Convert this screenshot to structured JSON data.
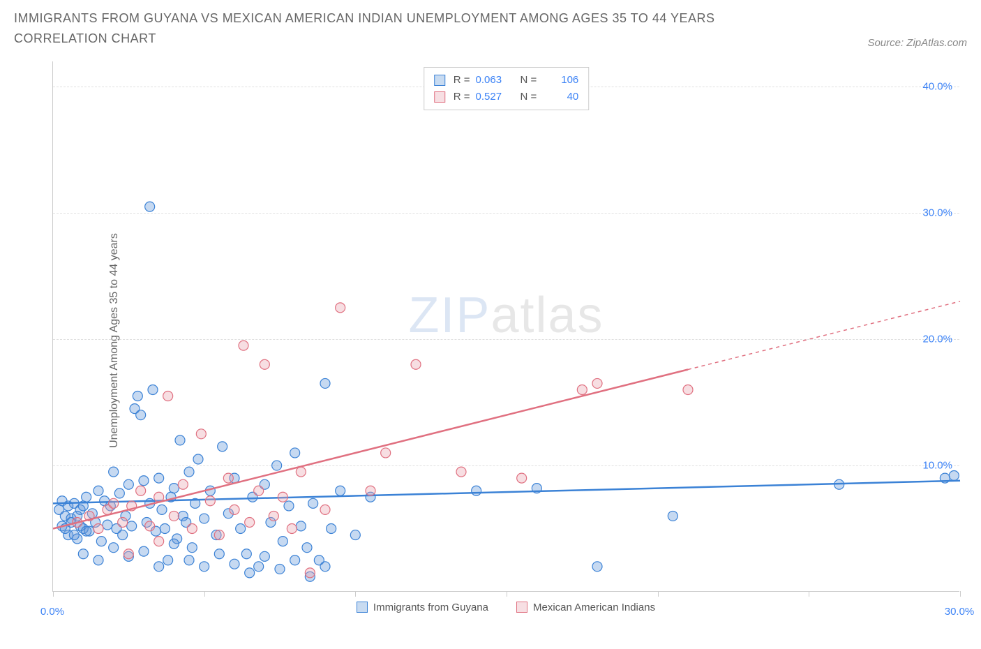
{
  "title": "IMMIGRANTS FROM GUYANA VS MEXICAN AMERICAN INDIAN UNEMPLOYMENT AMONG AGES 35 TO 44 YEARS CORRELATION CHART",
  "source": "Source: ZipAtlas.com",
  "y_axis_label": "Unemployment Among Ages 35 to 44 years",
  "watermark": {
    "part1": "ZIP",
    "part2": "atlas"
  },
  "chart": {
    "type": "scatter",
    "xlim": [
      0,
      30
    ],
    "ylim": [
      0,
      42
    ],
    "x_ticks": [
      0,
      5,
      10,
      15,
      20,
      25,
      30
    ],
    "x_tick_labels": [
      "0.0%",
      "",
      "",
      "",
      "",
      "",
      "30.0%"
    ],
    "y_ticks": [
      10,
      20,
      30,
      40
    ],
    "y_tick_labels": [
      "10.0%",
      "20.0%",
      "30.0%",
      "40.0%"
    ],
    "x_label_color": "#3b82f6",
    "y_label_color": "#3b82f6",
    "grid_color": "#e0e0e0",
    "background_color": "#ffffff",
    "marker_radius": 7,
    "marker_fill_opacity": 0.35,
    "marker_stroke_width": 1.2,
    "line_width": 2.5
  },
  "series": [
    {
      "name": "Immigrants from Guyana",
      "color": "#5b93d6",
      "stroke": "#3b82d6",
      "R": "0.063",
      "N": "106",
      "trend": {
        "x1": 0,
        "y1": 7.0,
        "x2": 30,
        "y2": 8.8,
        "solid_until_x": 30
      },
      "points": [
        [
          0.3,
          5.2
        ],
        [
          0.4,
          6.0
        ],
        [
          0.5,
          4.5
        ],
        [
          0.6,
          5.8
        ],
        [
          0.7,
          7.0
        ],
        [
          0.8,
          4.2
        ],
        [
          0.9,
          6.5
        ],
        [
          1.0,
          5.0
        ],
        [
          1.1,
          7.5
        ],
        [
          1.2,
          4.8
        ],
        [
          1.3,
          6.2
        ],
        [
          1.4,
          5.5
        ],
        [
          1.5,
          8.0
        ],
        [
          1.6,
          4.0
        ],
        [
          1.7,
          7.2
        ],
        [
          1.8,
          5.3
        ],
        [
          1.9,
          6.8
        ],
        [
          2.0,
          9.5
        ],
        [
          2.1,
          5.0
        ],
        [
          2.2,
          7.8
        ],
        [
          2.3,
          4.5
        ],
        [
          2.4,
          6.0
        ],
        [
          2.5,
          8.5
        ],
        [
          2.6,
          5.2
        ],
        [
          2.7,
          14.5
        ],
        [
          2.8,
          15.5
        ],
        [
          2.9,
          14.0
        ],
        [
          3.0,
          8.8
        ],
        [
          3.1,
          5.5
        ],
        [
          3.2,
          7.0
        ],
        [
          3.3,
          16.0
        ],
        [
          3.4,
          4.8
        ],
        [
          3.5,
          9.0
        ],
        [
          3.6,
          6.5
        ],
        [
          3.7,
          5.0
        ],
        [
          3.8,
          2.5
        ],
        [
          3.9,
          7.5
        ],
        [
          4.0,
          8.2
        ],
        [
          4.1,
          4.2
        ],
        [
          4.2,
          12.0
        ],
        [
          4.3,
          6.0
        ],
        [
          4.4,
          5.5
        ],
        [
          4.5,
          9.5
        ],
        [
          4.6,
          3.5
        ],
        [
          4.7,
          7.0
        ],
        [
          4.8,
          10.5
        ],
        [
          5.0,
          5.8
        ],
        [
          5.2,
          8.0
        ],
        [
          5.4,
          4.5
        ],
        [
          5.6,
          11.5
        ],
        [
          5.8,
          6.2
        ],
        [
          6.0,
          9.0
        ],
        [
          6.2,
          5.0
        ],
        [
          6.4,
          3.0
        ],
        [
          6.6,
          7.5
        ],
        [
          6.8,
          2.0
        ],
        [
          7.0,
          8.5
        ],
        [
          7.2,
          5.5
        ],
        [
          7.4,
          10.0
        ],
        [
          7.6,
          4.0
        ],
        [
          7.8,
          6.8
        ],
        [
          8.0,
          11.0
        ],
        [
          8.2,
          5.2
        ],
        [
          8.4,
          3.5
        ],
        [
          8.6,
          7.0
        ],
        [
          8.8,
          2.5
        ],
        [
          9.0,
          16.5
        ],
        [
          9.2,
          5.0
        ],
        [
          9.5,
          8.0
        ],
        [
          10.0,
          4.5
        ],
        [
          10.5,
          7.5
        ],
        [
          3.2,
          30.5
        ],
        [
          18.0,
          2.0
        ],
        [
          14.0,
          8.0
        ],
        [
          16.0,
          8.2
        ],
        [
          20.5,
          6.0
        ],
        [
          26.0,
          8.5
        ],
        [
          29.5,
          9.0
        ],
        [
          29.8,
          9.2
        ],
        [
          1.0,
          3.0
        ],
        [
          1.5,
          2.5
        ],
        [
          2.0,
          3.5
        ],
        [
          2.5,
          2.8
        ],
        [
          3.0,
          3.2
        ],
        [
          3.5,
          2.0
        ],
        [
          4.0,
          3.8
        ],
        [
          4.5,
          2.5
        ],
        [
          5.0,
          2.0
        ],
        [
          5.5,
          3.0
        ],
        [
          6.0,
          2.2
        ],
        [
          6.5,
          1.5
        ],
        [
          7.0,
          2.8
        ],
        [
          7.5,
          1.8
        ],
        [
          8.0,
          2.5
        ],
        [
          8.5,
          1.2
        ],
        [
          9.0,
          2.0
        ],
        [
          0.2,
          6.5
        ],
        [
          0.3,
          7.2
        ],
        [
          0.4,
          5.0
        ],
        [
          0.5,
          6.8
        ],
        [
          0.6,
          5.5
        ],
        [
          0.7,
          4.5
        ],
        [
          0.8,
          6.0
        ],
        [
          0.9,
          5.2
        ],
        [
          1.0,
          6.8
        ],
        [
          1.1,
          4.8
        ]
      ]
    },
    {
      "name": "Mexican American Indians",
      "color": "#e8a0ac",
      "stroke": "#e07080",
      "R": "0.527",
      "N": "40",
      "trend": {
        "x1": 0,
        "y1": 5.0,
        "x2": 30,
        "y2": 23.0,
        "solid_until_x": 21
      },
      "points": [
        [
          0.8,
          5.5
        ],
        [
          1.2,
          6.0
        ],
        [
          1.5,
          5.0
        ],
        [
          1.8,
          6.5
        ],
        [
          2.0,
          7.0
        ],
        [
          2.3,
          5.5
        ],
        [
          2.6,
          6.8
        ],
        [
          2.9,
          8.0
        ],
        [
          3.2,
          5.2
        ],
        [
          3.5,
          7.5
        ],
        [
          3.8,
          15.5
        ],
        [
          4.0,
          6.0
        ],
        [
          4.3,
          8.5
        ],
        [
          4.6,
          5.0
        ],
        [
          4.9,
          12.5
        ],
        [
          5.2,
          7.2
        ],
        [
          5.5,
          4.5
        ],
        [
          5.8,
          9.0
        ],
        [
          6.0,
          6.5
        ],
        [
          6.3,
          19.5
        ],
        [
          6.5,
          5.5
        ],
        [
          6.8,
          8.0
        ],
        [
          7.0,
          18.0
        ],
        [
          7.3,
          6.0
        ],
        [
          7.6,
          7.5
        ],
        [
          7.9,
          5.0
        ],
        [
          8.2,
          9.5
        ],
        [
          8.5,
          1.5
        ],
        [
          9.0,
          6.5
        ],
        [
          9.5,
          22.5
        ],
        [
          10.5,
          8.0
        ],
        [
          11.0,
          11.0
        ],
        [
          12.0,
          18.0
        ],
        [
          13.5,
          9.5
        ],
        [
          15.5,
          9.0
        ],
        [
          17.5,
          16.0
        ],
        [
          18.0,
          16.5
        ],
        [
          21.0,
          16.0
        ],
        [
          2.5,
          3.0
        ],
        [
          3.5,
          4.0
        ]
      ]
    }
  ],
  "legend_bottom": [
    {
      "label": "Immigrants from Guyana",
      "color": "#5b93d6",
      "stroke": "#3b82d6"
    },
    {
      "label": "Mexican American Indians",
      "color": "#e8a0ac",
      "stroke": "#e07080"
    }
  ]
}
